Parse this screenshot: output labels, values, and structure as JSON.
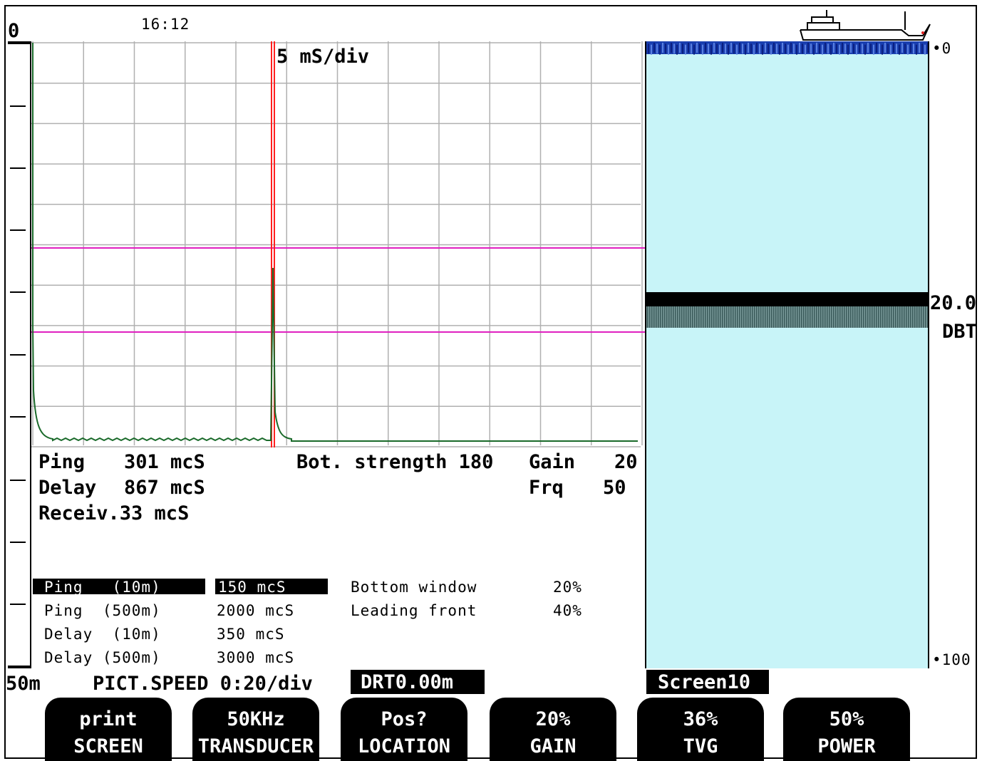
{
  "header": {
    "depth_top": "0",
    "time": "16:12",
    "depth_bottom": "50m"
  },
  "scope": {
    "time_div": "5 mS/div"
  },
  "readouts": {
    "ping_label": "Ping",
    "ping_value": "301 mcS",
    "delay_label": "Delay",
    "delay_value": "867 mcS",
    "receiv": "Receiv.33 mcS",
    "bot_strength": "Bot. strength 180",
    "gain_label": "Gain",
    "gain_value": "20",
    "frq_label": "Frq",
    "frq_value": "50"
  },
  "params": [
    {
      "name": "Ping   (10m)",
      "value": "150 mcS",
      "selected": true
    },
    {
      "name": "Ping  (500m)",
      "value": "2000 mcS",
      "selected": false
    },
    {
      "name": "Delay  (10m)",
      "value": "350 mcS",
      "selected": false
    },
    {
      "name": "Delay (500m)",
      "value": "3000 mcS",
      "selected": false
    }
  ],
  "settings": [
    {
      "name": "Bottom window",
      "value": "20%"
    },
    {
      "name": "Leading front",
      "value": "40%"
    }
  ],
  "status": {
    "pict_speed": "PICT.SPEED 0:20/div",
    "drt": "DRT0.00m",
    "screen": "Screen10"
  },
  "echogram": {
    "scale_top": "0",
    "depth_value": "20.0",
    "depth_label": "DBT",
    "scale_bottom": "100",
    "water_color": "#c8f4f8",
    "surface_color": "#1a3fb0"
  },
  "softkeys": [
    {
      "top": "print",
      "bottom": "SCREEN"
    },
    {
      "top": "50KHz",
      "bottom": "TRANSDUCER"
    },
    {
      "top": "Pos?",
      "bottom": "LOCATION"
    },
    {
      "top": "20%",
      "bottom": "GAIN"
    },
    {
      "top": "36%",
      "bottom": "TVG"
    },
    {
      "top": "50%",
      "bottom": "POWER"
    }
  ],
  "colors": {
    "grid": "#b0b0b0",
    "threshold": "#e020c0",
    "marker": "#ff2020",
    "signal": "#1a6a2a"
  }
}
